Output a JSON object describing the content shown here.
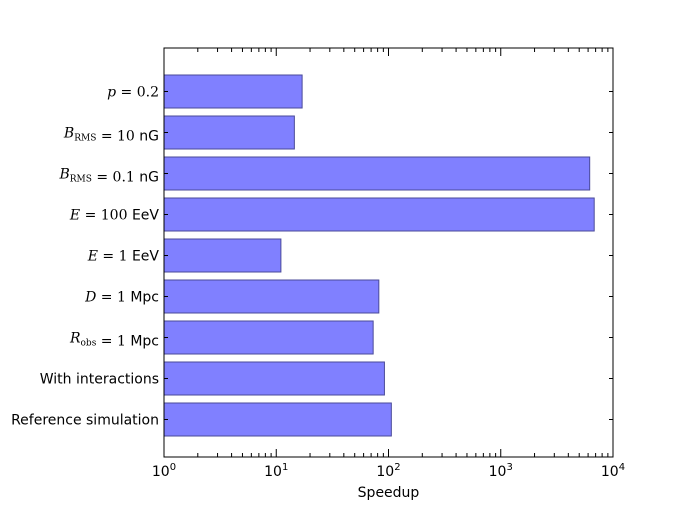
{
  "chart_data": {
    "type": "bar",
    "orientation": "horizontal",
    "title": "",
    "xlabel": "Speedup",
    "ylabel": "",
    "xscale": "log",
    "xlim": [
      1,
      10000
    ],
    "xtick_labels": [
      {
        "base": "10",
        "exp": "0"
      },
      {
        "base": "10",
        "exp": "1"
      },
      {
        "base": "10",
        "exp": "2"
      },
      {
        "base": "10",
        "exp": "3"
      },
      {
        "base": "10",
        "exp": "4"
      }
    ],
    "categories": [
      {
        "id": "p",
        "parts": [
          {
            "t": "p",
            "s": "math"
          },
          {
            "t": " = 0.2",
            "s": "mathup"
          }
        ]
      },
      {
        "id": "brms10",
        "parts": [
          {
            "t": "B",
            "s": "math"
          },
          {
            "t": "RMS",
            "s": "sub"
          },
          {
            "t": " = 10",
            "s": "mathup"
          },
          {
            "t": " nG",
            "s": "text"
          }
        ]
      },
      {
        "id": "brms01",
        "parts": [
          {
            "t": "B",
            "s": "math"
          },
          {
            "t": "RMS",
            "s": "sub"
          },
          {
            "t": " = 0.1",
            "s": "mathup"
          },
          {
            "t": " nG",
            "s": "text"
          }
        ]
      },
      {
        "id": "e100",
        "parts": [
          {
            "t": "E",
            "s": "math"
          },
          {
            "t": " = 100",
            "s": "mathup"
          },
          {
            "t": " EeV",
            "s": "text"
          }
        ]
      },
      {
        "id": "e1",
        "parts": [
          {
            "t": "E",
            "s": "math"
          },
          {
            "t": " = 1",
            "s": "mathup"
          },
          {
            "t": " EeV",
            "s": "text"
          }
        ]
      },
      {
        "id": "d1",
        "parts": [
          {
            "t": "D",
            "s": "math"
          },
          {
            "t": " = 1",
            "s": "mathup"
          },
          {
            "t": " Mpc",
            "s": "text"
          }
        ]
      },
      {
        "id": "robs",
        "parts": [
          {
            "t": "R",
            "s": "math"
          },
          {
            "t": "obs",
            "s": "sub"
          },
          {
            "t": " = 1",
            "s": "mathup"
          },
          {
            "t": " Mpc",
            "s": "text"
          }
        ]
      },
      {
        "id": "interactions",
        "parts": [
          {
            "t": "With interactions",
            "s": "text"
          }
        ]
      },
      {
        "id": "reference",
        "parts": [
          {
            "t": "Reference simulation",
            "s": "text"
          }
        ]
      }
    ],
    "values": [
      17,
      14.5,
      6200,
      6800,
      11,
      82,
      73,
      92,
      106
    ],
    "bar_color": "#8080ff",
    "bar_edge_color": "#4a4a99",
    "grid": false,
    "legend": "none"
  }
}
